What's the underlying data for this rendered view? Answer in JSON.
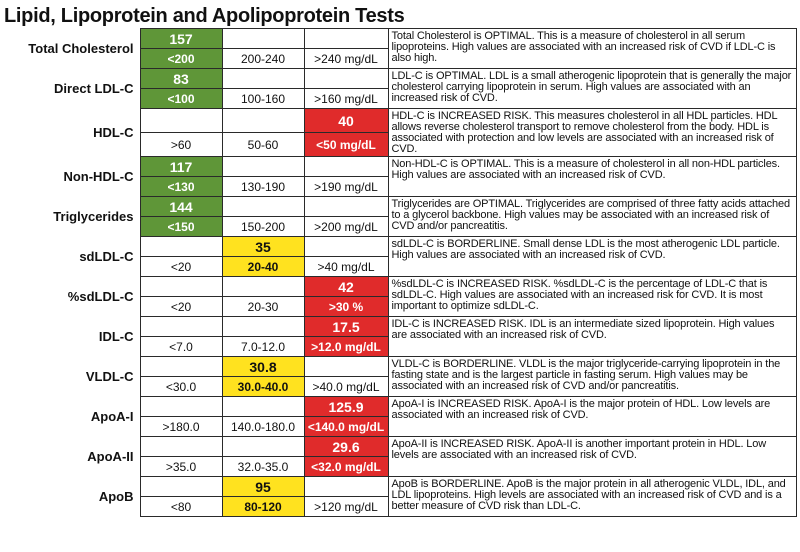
{
  "page": {
    "title": "Lipid, Lipoprotein and Apolipoprotein Tests"
  },
  "colors": {
    "optimal": "#5f9638",
    "borderline": "#ffe21f",
    "increased_risk": "#e02b2b"
  },
  "tests": [
    {
      "name": "Total Cholesterol",
      "value": "157",
      "status": "optimal",
      "ranges": [
        "<200",
        "200-240",
        ">240 mg/dL"
      ],
      "description": "Total Cholesterol is OPTIMAL. This is a measure of cholesterol in all serum lipoproteins. High values are associated with an increased risk of CVD if LDL-C is also high."
    },
    {
      "name": "Direct LDL-C",
      "value": "83",
      "status": "optimal",
      "ranges": [
        "<100",
        "100-160",
        ">160 mg/dL"
      ],
      "description": "LDL-C is OPTIMAL. LDL is a small atherogenic lipoprotein that is generally the major cholesterol carrying lipoprotein in serum. High values are associated with an increased risk of CVD."
    },
    {
      "name": "HDL-C",
      "value": "40",
      "status": "increased_risk",
      "ranges": [
        ">60",
        "50-60",
        "<50 mg/dL"
      ],
      "description": "HDL-C is INCREASED RISK. This measures cholesterol in all HDL particles. HDL allows reverse cholesterol transport to remove cholesterol from the body. HDL is associated with protection and low levels are associated with an increased risk of CVD."
    },
    {
      "name": "Non-HDL-C",
      "value": "117",
      "status": "optimal",
      "ranges": [
        "<130",
        "130-190",
        ">190 mg/dL"
      ],
      "description": "Non-HDL-C is OPTIMAL. This is a measure of cholesterol in all non-HDL particles. High values are associated with an increased risk of CVD."
    },
    {
      "name": "Triglycerides",
      "value": "144",
      "status": "optimal",
      "ranges": [
        "<150",
        "150-200",
        ">200 mg/dL"
      ],
      "description": "Triglycerides are OPTIMAL. Triglycerides are comprised of three fatty acids attached to a glycerol backbone. High values may be associated with an increased risk of CVD and/or pancreatitis."
    },
    {
      "name": "sdLDL-C",
      "value": "35",
      "status": "borderline",
      "ranges": [
        "<20",
        "20-40",
        ">40 mg/dL"
      ],
      "description": "sdLDL-C is BORDERLINE. Small dense LDL is the most atherogenic LDL particle. High values are associated with an increased risk of CVD."
    },
    {
      "name": "%sdLDL-C",
      "value": "42",
      "status": "increased_risk",
      "ranges": [
        "<20",
        "20-30",
        ">30 %"
      ],
      "description": "%sdLDL-C is INCREASED RISK. %sdLDL-C is the percentage of LDL-C that is sdLDL-C. High values are associated with an increased risk for CVD. It is most important to optimize sdLDL-C."
    },
    {
      "name": "IDL-C",
      "value": "17.5",
      "status": "increased_risk",
      "ranges": [
        "<7.0",
        "7.0-12.0",
        ">12.0 mg/dL"
      ],
      "description": "IDL-C is INCREASED RISK. IDL is an intermediate sized lipoprotein. High values are associated with an increased risk of CVD."
    },
    {
      "name": "VLDL-C",
      "value": "30.8",
      "status": "borderline",
      "ranges": [
        "<30.0",
        "30.0-40.0",
        ">40.0 mg/dL"
      ],
      "description": "VLDL-C is BORDERLINE. VLDL is the major triglyceride-carrying lipoprotein in the fasting state and is the largest particle in fasting serum. High values may be associated with an increased risk of CVD and/or pancreatitis."
    },
    {
      "name": "ApoA-I",
      "value": "125.9",
      "status": "increased_risk",
      "ranges": [
        ">180.0",
        "140.0-180.0",
        "<140.0 mg/dL"
      ],
      "description": "ApoA-I is INCREASED RISK. ApoA-I is the major protein of HDL. Low levels are associated with an increased risk of CVD."
    },
    {
      "name": "ApoA-II",
      "value": "29.6",
      "status": "increased_risk",
      "ranges": [
        ">35.0",
        "32.0-35.0",
        "<32.0 mg/dL"
      ],
      "description": "ApoA-II is INCREASED RISK. ApoA-II is another important protein in HDL. Low levels are associated with an increased risk of CVD."
    },
    {
      "name": "ApoB",
      "value": "95",
      "status": "borderline",
      "ranges": [
        "<80",
        "80-120",
        ">120 mg/dL"
      ],
      "description": "ApoB is BORDERLINE. ApoB is the major protein in all atherogenic VLDL, IDL, and LDL lipoproteins. High levels are associated with an increased risk of CVD and is a better measure of CVD risk than LDL-C."
    }
  ]
}
